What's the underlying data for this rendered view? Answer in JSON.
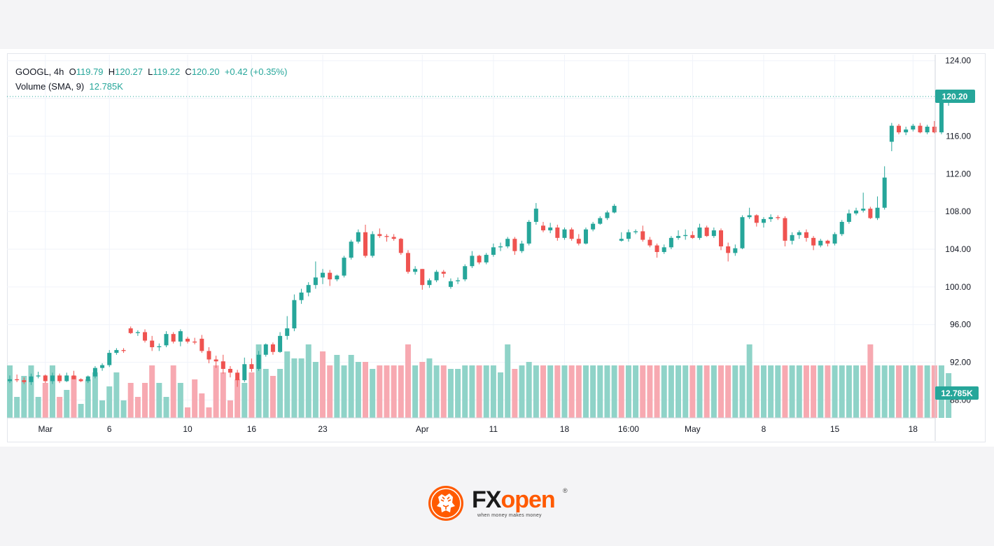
{
  "legend": {
    "symbol": "GOOGL, 4h",
    "open_label": "O",
    "open": "119.79",
    "high_label": "H",
    "high": "120.27",
    "low_label": "L",
    "low": "119.22",
    "close_label": "C",
    "close": "120.20",
    "change": "+0.42 (+0.35%)",
    "volume_label": "Volume (SMA, 9)",
    "volume_value": "12.785K"
  },
  "price_label": "120.20",
  "volume_label_tag": "12.785K",
  "brand": {
    "name_fx": "FX",
    "name_open": "open",
    "tagline": "when money makes money",
    "registered": "®"
  },
  "colors": {
    "up": "#26a69a",
    "down": "#ef5350",
    "vol_up": "#8fd3c8",
    "vol_down": "#f7a9b1",
    "brand_orange": "#ff5a00"
  },
  "chart_data": {
    "type": "candlestick",
    "symbol": "GOOGL",
    "interval": "4h",
    "y_ticks": [
      124,
      120,
      116,
      112,
      108,
      104,
      100,
      96,
      92,
      88
    ],
    "y_tick_labels": [
      "124.00",
      "116.00",
      "112.00",
      "108.00",
      "104.00",
      "100.00",
      "96.00",
      "92.00",
      "88.00"
    ],
    "ylim": [
      86.1,
      124.5
    ],
    "x_ticks": [
      {
        "bar": 5,
        "label": "Mar"
      },
      {
        "bar": 14,
        "label": "6"
      },
      {
        "bar": 25,
        "label": "10"
      },
      {
        "bar": 34,
        "label": "16"
      },
      {
        "bar": 44,
        "label": "23"
      },
      {
        "bar": 58,
        "label": "Apr"
      },
      {
        "bar": 68,
        "label": "11"
      },
      {
        "bar": 78,
        "label": "18"
      },
      {
        "bar": 87,
        "label": "16:00"
      },
      {
        "bar": 96,
        "label": "May"
      },
      {
        "bar": 106,
        "label": "8"
      },
      {
        "bar": 116,
        "label": "15"
      },
      {
        "bar": 127,
        "label": "18"
      }
    ],
    "ohlc": [
      [
        90.0,
        90.6,
        89.8,
        90.2
      ],
      [
        90.2,
        90.7,
        89.9,
        90.1
      ],
      [
        90.1,
        90.4,
        89.7,
        89.9
      ],
      [
        89.9,
        90.8,
        89.6,
        90.5
      ],
      [
        90.5,
        91.0,
        90.3,
        90.6
      ],
      [
        90.6,
        90.7,
        89.8,
        90.0
      ],
      [
        90.0,
        90.9,
        89.7,
        90.6
      ],
      [
        90.6,
        90.8,
        89.8,
        90.0
      ],
      [
        90.0,
        90.9,
        89.9,
        90.6
      ],
      [
        90.6,
        91.1,
        90.2,
        90.2
      ],
      [
        90.2,
        90.3,
        89.9,
        90.0
      ],
      [
        90.0,
        90.6,
        89.8,
        90.5
      ],
      [
        90.5,
        91.6,
        90.3,
        91.4
      ],
      [
        91.4,
        91.9,
        91.1,
        91.7
      ],
      [
        91.7,
        93.3,
        91.5,
        93.0
      ],
      [
        93.0,
        93.5,
        92.8,
        93.3
      ],
      [
        93.3,
        93.5,
        93.0,
        93.2
      ],
      [
        95.6,
        95.8,
        95.0,
        95.1
      ],
      [
        95.1,
        95.4,
        94.8,
        95.2
      ],
      [
        95.2,
        95.5,
        94.1,
        94.3
      ],
      [
        94.3,
        94.8,
        93.2,
        93.6
      ],
      [
        93.6,
        94.0,
        93.2,
        93.7
      ],
      [
        93.8,
        95.3,
        93.6,
        95.0
      ],
      [
        95.0,
        95.2,
        94.0,
        94.2
      ],
      [
        94.2,
        95.5,
        93.7,
        95.3
      ],
      [
        94.5,
        94.7,
        94.0,
        94.2
      ],
      [
        94.2,
        94.6,
        93.9,
        94.1
      ],
      [
        94.5,
        94.9,
        93.0,
        93.2
      ],
      [
        93.2,
        93.6,
        91.9,
        92.3
      ],
      [
        92.3,
        92.7,
        91.4,
        92.1
      ],
      [
        92.1,
        92.8,
        90.8,
        91.3
      ],
      [
        91.3,
        91.6,
        90.4,
        90.9
      ],
      [
        90.9,
        91.2,
        89.4,
        90.1
      ],
      [
        90.1,
        92.5,
        89.9,
        91.8
      ],
      [
        91.8,
        92.4,
        91.0,
        91.3
      ],
      [
        91.3,
        93.2,
        91.1,
        92.8
      ],
      [
        92.8,
        94.0,
        92.6,
        93.9
      ],
      [
        93.9,
        94.1,
        92.8,
        93.1
      ],
      [
        93.1,
        95.2,
        93.0,
        94.8
      ],
      [
        94.8,
        96.9,
        94.4,
        95.6
      ],
      [
        95.6,
        99.2,
        95.3,
        98.6
      ],
      [
        98.6,
        99.8,
        98.2,
        99.4
      ],
      [
        99.4,
        100.5,
        99.0,
        100.2
      ],
      [
        100.2,
        102.7,
        99.8,
        101.0
      ],
      [
        101.0,
        101.9,
        100.3,
        101.5
      ],
      [
        101.5,
        101.8,
        100.1,
        100.8
      ],
      [
        100.8,
        101.3,
        100.6,
        101.2
      ],
      [
        101.2,
        103.3,
        101.0,
        103.1
      ],
      [
        103.1,
        105.0,
        102.9,
        104.8
      ],
      [
        104.8,
        106.1,
        104.6,
        105.8
      ],
      [
        105.8,
        106.6,
        103.1,
        103.3
      ],
      [
        103.3,
        105.9,
        103.1,
        105.6
      ],
      [
        105.6,
        106.2,
        105.2,
        105.4
      ],
      [
        105.4,
        105.6,
        104.8,
        105.3
      ],
      [
        105.3,
        105.6,
        104.9,
        105.1
      ],
      [
        105.1,
        105.2,
        103.4,
        103.6
      ],
      [
        103.6,
        103.9,
        101.4,
        101.6
      ],
      [
        101.6,
        102.2,
        101.3,
        101.9
      ],
      [
        101.9,
        101.9,
        99.7,
        100.2
      ],
      [
        100.2,
        100.9,
        99.9,
        100.7
      ],
      [
        100.7,
        101.8,
        100.5,
        101.6
      ],
      [
        101.6,
        101.8,
        101.0,
        101.4
      ],
      [
        100.0,
        100.9,
        99.8,
        100.6
      ],
      [
        100.6,
        101.0,
        100.3,
        100.7
      ],
      [
        100.8,
        102.4,
        100.6,
        102.2
      ],
      [
        102.2,
        103.8,
        102.0,
        103.3
      ],
      [
        103.3,
        103.4,
        102.4,
        102.6
      ],
      [
        102.6,
        103.6,
        102.4,
        103.4
      ],
      [
        103.4,
        104.6,
        103.2,
        104.2
      ],
      [
        104.2,
        104.7,
        103.8,
        104.3
      ],
      [
        104.3,
        105.3,
        104.1,
        105.1
      ],
      [
        105.1,
        105.3,
        103.4,
        103.8
      ],
      [
        103.8,
        104.9,
        103.6,
        104.6
      ],
      [
        104.6,
        107.1,
        104.4,
        106.9
      ],
      [
        106.9,
        108.9,
        106.6,
        108.3
      ],
      [
        106.5,
        106.9,
        105.8,
        106.0
      ],
      [
        106.0,
        106.8,
        105.7,
        106.3
      ],
      [
        106.3,
        106.6,
        104.9,
        105.2
      ],
      [
        105.2,
        106.3,
        105.0,
        106.1
      ],
      [
        106.1,
        106.3,
        104.9,
        105.1
      ],
      [
        105.1,
        105.6,
        104.4,
        104.6
      ],
      [
        104.6,
        106.3,
        104.5,
        106.1
      ],
      [
        106.1,
        106.9,
        105.9,
        106.7
      ],
      [
        106.7,
        107.5,
        106.6,
        107.3
      ],
      [
        107.3,
        108.1,
        107.1,
        107.9
      ],
      [
        107.9,
        108.8,
        107.8,
        108.6
      ],
      [
        104.9,
        105.8,
        104.8,
        105.1
      ],
      [
        105.1,
        106.1,
        104.8,
        105.8
      ],
      [
        105.8,
        106.1,
        105.6,
        105.9
      ],
      [
        105.9,
        106.5,
        104.8,
        105.0
      ],
      [
        105.0,
        105.3,
        104.2,
        104.4
      ],
      [
        104.4,
        104.6,
        103.1,
        103.7
      ],
      [
        103.7,
        104.5,
        103.5,
        104.2
      ],
      [
        104.2,
        105.4,
        104.0,
        105.2
      ],
      [
        105.2,
        106.0,
        105.0,
        105.4
      ],
      [
        105.4,
        106.1,
        105.0,
        105.5
      ],
      [
        105.5,
        105.9,
        105.1,
        105.2
      ],
      [
        105.2,
        106.7,
        105.0,
        106.3
      ],
      [
        106.3,
        106.5,
        105.3,
        105.4
      ],
      [
        105.4,
        106.3,
        105.2,
        106.0
      ],
      [
        106.0,
        106.2,
        103.9,
        104.3
      ],
      [
        104.3,
        104.7,
        102.7,
        103.6
      ],
      [
        103.6,
        104.5,
        103.3,
        104.1
      ],
      [
        104.1,
        107.6,
        104.0,
        107.4
      ],
      [
        107.4,
        108.4,
        107.2,
        107.6
      ],
      [
        107.6,
        107.7,
        106.4,
        106.8
      ],
      [
        106.8,
        107.4,
        106.3,
        107.2
      ],
      [
        107.2,
        107.7,
        106.9,
        107.4
      ],
      [
        107.4,
        107.6,
        107.1,
        107.3
      ],
      [
        107.3,
        107.5,
        104.3,
        104.9
      ],
      [
        104.9,
        105.8,
        104.5,
        105.5
      ],
      [
        105.5,
        106.0,
        105.1,
        105.8
      ],
      [
        105.8,
        106.1,
        104.8,
        105.2
      ],
      [
        105.2,
        105.4,
        103.9,
        104.4
      ],
      [
        104.4,
        105.1,
        104.2,
        104.9
      ],
      [
        104.9,
        105.0,
        104.3,
        104.6
      ],
      [
        104.6,
        105.8,
        104.4,
        105.6
      ],
      [
        105.6,
        107.1,
        105.4,
        106.9
      ],
      [
        106.9,
        108.2,
        106.7,
        107.8
      ],
      [
        107.8,
        108.4,
        107.6,
        108.1
      ],
      [
        108.1,
        110.0,
        107.9,
        108.3
      ],
      [
        108.3,
        108.5,
        107.2,
        107.3
      ],
      [
        107.3,
        109.6,
        107.1,
        108.4
      ],
      [
        108.4,
        112.8,
        108.2,
        111.6
      ],
      [
        115.4,
        117.4,
        114.4,
        117.1
      ],
      [
        117.1,
        117.3,
        116.2,
        116.4
      ],
      [
        116.4,
        117.0,
        116.1,
        116.7
      ],
      [
        116.7,
        117.3,
        116.5,
        117.1
      ],
      [
        117.1,
        117.4,
        116.3,
        116.4
      ],
      [
        116.4,
        117.2,
        116.2,
        117.0
      ],
      [
        117.0,
        117.6,
        116.3,
        116.4
      ],
      [
        116.4,
        120.0,
        116.2,
        119.8
      ],
      [
        119.79,
        120.27,
        119.22,
        120.2
      ]
    ],
    "volume_up": [
      true,
      true,
      true,
      true,
      true,
      false,
      true,
      false,
      true,
      false,
      true,
      true,
      true,
      true,
      true,
      true,
      true,
      false,
      false,
      false,
      false,
      true,
      true,
      false,
      true,
      false,
      false,
      false,
      false,
      false,
      false,
      false,
      false,
      true,
      false,
      true,
      true,
      false,
      true,
      true,
      true,
      true,
      true,
      true,
      false,
      false,
      true,
      true,
      true,
      true,
      false,
      true,
      false,
      false,
      false,
      false,
      false,
      true,
      false,
      true,
      true,
      false,
      true,
      true,
      true,
      true,
      false,
      true,
      true,
      true,
      true,
      false,
      true,
      true,
      true,
      false,
      true,
      false,
      true,
      false,
      false,
      true,
      true,
      true,
      true,
      true,
      false,
      true,
      true,
      false,
      false,
      false,
      true,
      true,
      true,
      true,
      false,
      true,
      false,
      true,
      false,
      false,
      true,
      true,
      true,
      false,
      true,
      true,
      true,
      false,
      true,
      true,
      false,
      false,
      true,
      false,
      true,
      true,
      true,
      true,
      false,
      false,
      true,
      true,
      true,
      false,
      true,
      true,
      false,
      true,
      false,
      true,
      true
    ],
    "volume": [
      15,
      6,
      12,
      15,
      6,
      10,
      15,
      6,
      8,
      12,
      4,
      11,
      13,
      5,
      9,
      13,
      5,
      10,
      6,
      10,
      15,
      10,
      6,
      15,
      10,
      3,
      11,
      7,
      3,
      15,
      13,
      5,
      11,
      10,
      13,
      21,
      14,
      12,
      14,
      19,
      17,
      17,
      21,
      16,
      19,
      15,
      18,
      15,
      18,
      16,
      16,
      14,
      15,
      15,
      15,
      15,
      21,
      15,
      16,
      17,
      15,
      15,
      14,
      14,
      15,
      15,
      15,
      15,
      15,
      13,
      21,
      14,
      15,
      16,
      15,
      15,
      15,
      15,
      15,
      15,
      15,
      15,
      15,
      15,
      15,
      15,
      15,
      15,
      15,
      15,
      15,
      15,
      15,
      15,
      15,
      15,
      15,
      15,
      15,
      15,
      15,
      15,
      15,
      15,
      21,
      15,
      15,
      15,
      15,
      15,
      15,
      15,
      15,
      15,
      15,
      15,
      15,
      15,
      15,
      15,
      15,
      21,
      15,
      15,
      15,
      15,
      15,
      15,
      15,
      15,
      15,
      15,
      12.785
    ]
  }
}
